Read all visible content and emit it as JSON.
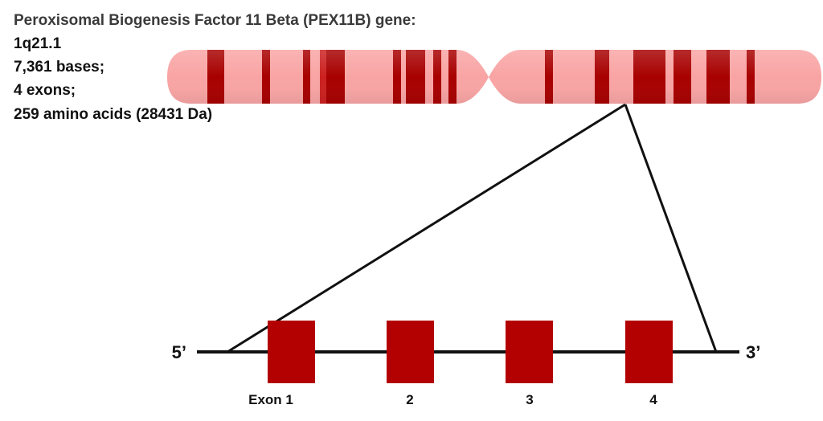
{
  "gene_info": {
    "title": "Peroxisomal Biogenesis Factor 11 Beta (PEX11B) gene:",
    "location": "1q21.1",
    "bases": "7,361 bases;",
    "exons": "4 exons;",
    "protein": "259 amino acids (28431 Da)"
  },
  "gene_structure": {
    "five_prime": "5’",
    "three_prime": "3’",
    "exon_labels": [
      "Exon 1",
      "2",
      "3",
      "4"
    ]
  },
  "colors": {
    "chromosome_fill": "#f9a4a4",
    "band_dark": "#a80000",
    "band_medium": "#cc2020",
    "exon_fill": "#b30000",
    "line": "#111111"
  }
}
